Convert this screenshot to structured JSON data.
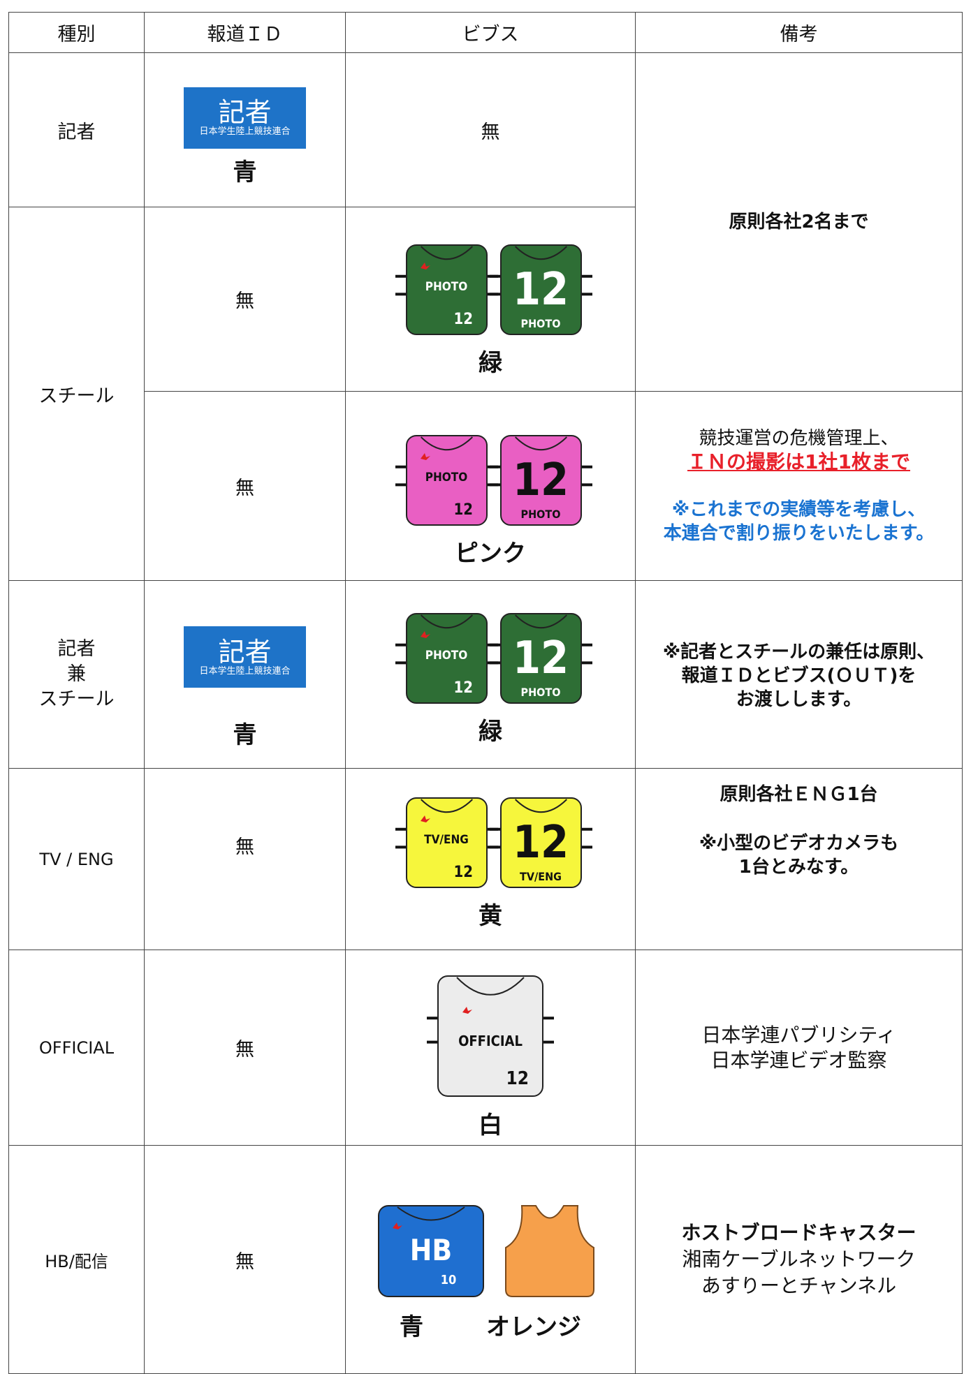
{
  "table": {
    "headers": [
      "種別",
      "報道ＩＤ",
      "ビブス",
      "備考"
    ],
    "rows": [
      {
        "type": "記者",
        "id": {
          "card": {
            "title": "記者",
            "org": "日本学生陸上競技連合"
          },
          "color": "青"
        },
        "bibs": "無",
        "note": [
          "原則各社2名まで"
        ]
      },
      {
        "type": "スチール",
        "id": "無",
        "bibs": {
          "front": "PHOTO",
          "number": "12",
          "color": "緑"
        }
      },
      {
        "id": "無",
        "bibs": {
          "front": "PHOTO",
          "number": "12",
          "color": "ピンク"
        },
        "note": [
          "競技運営の危機管理上、",
          "ＩＮの撮影は1社1枚まで",
          "※これまでの実績等を考慮し、",
          "本連合で割り振りをいたします。"
        ]
      },
      {
        "type": [
          "記者",
          "兼",
          "スチール"
        ],
        "id": {
          "card": {
            "title": "記者",
            "org": "日本学生陸上競技連合"
          },
          "color": "青"
        },
        "bibs": {
          "front": "PHOTO",
          "number": "12",
          "color": "緑"
        },
        "note": [
          "※記者とスチールの兼任は原則、",
          "報道ＩＤとビブス(ＯＵＴ)を",
          "お渡しします。"
        ]
      },
      {
        "type": "TV / ENG",
        "id": "無",
        "bibs": {
          "front": "TV/ENG",
          "number": "12",
          "color": "黄"
        },
        "note": [
          "原則各社ＥＮＧ1台",
          "※小型のビデオカメラも",
          "1台とみなす。"
        ]
      },
      {
        "type": "OFFICIAL",
        "id": "無",
        "bibs": {
          "front": "OFFICIAL",
          "number": "12",
          "color": "白"
        },
        "note": [
          "日本学連パブリシティ",
          "日本学連ビデオ監察"
        ]
      },
      {
        "type": "HB/配信",
        "id": "無",
        "bibs": {
          "front": "HB",
          "number": "10",
          "color": "青",
          "second_color": "オレンジ"
        },
        "note": [
          "ホストブロードキャスター",
          "湘南ケーブルネットワーク",
          "あすりーとチャンネル"
        ]
      }
    ]
  }
}
